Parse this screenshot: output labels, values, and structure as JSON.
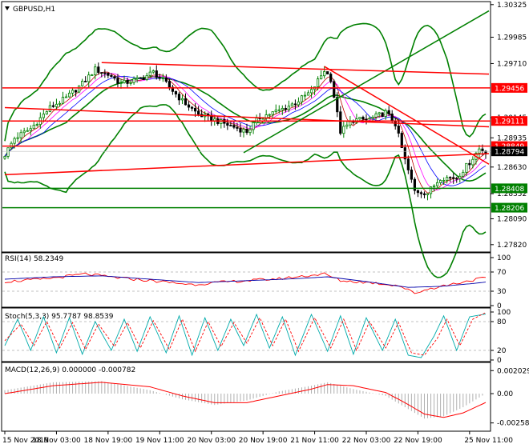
{
  "window": {
    "title": "GBPUSD,H1"
  },
  "colors": {
    "background": "#ffffff",
    "axis": "#000000",
    "candle_up": "#008000",
    "candle_down": "#000000",
    "bollinger": "#008000",
    "ma_fast": "#c00000",
    "ma_mid": "#ff00ff",
    "ma_slow": "#0000ff",
    "resistance": "#ff0000",
    "support": "#008000",
    "trend_channel": "#ff0000",
    "trend_up": "#008000",
    "rsi_line": "#ff0000",
    "rsi_signal": "#0000aa",
    "stoch_main": "#00aaaa",
    "stoch_signal": "#ff0000",
    "macd_hist": "#b0b0b0",
    "macd_signal": "#ff0000",
    "label_red_bg": "#ff0000",
    "label_green_bg": "#008000",
    "label_current_bg": "#000000"
  },
  "chart_data": [
    {
      "type": "candlestick",
      "title": "GBPUSD,H1",
      "y_axis_side": "right",
      "ylim": [
        1.2776,
        1.3034
      ],
      "x_tick_labels": [
        "15 Nov 2019",
        "18 Nov 03:00",
        "18 Nov 19:00",
        "19 Nov 11:00",
        "20 Nov 03:00",
        "20 Nov 19:00",
        "21 Nov 11:00",
        "22 Nov 03:00",
        "22 Nov 19:00",
        "25 Nov 11:00"
      ],
      "x_tick_bars": [
        0,
        16,
        32,
        48,
        64,
        80,
        96,
        112,
        128,
        144
      ],
      "y_tick_labels": [
        "1.30325",
        "1.29985",
        "1.29710",
        "1.29145",
        "1.28935",
        "1.28630",
        "1.28352",
        "1.28090",
        "1.27820"
      ],
      "price_levels": [
        {
          "label": "1.29456",
          "value": 1.29456,
          "kind": "resistance"
        },
        {
          "label": "1.29111",
          "value": 1.29111,
          "kind": "resistance"
        },
        {
          "label": "1.28849",
          "value": 1.28849,
          "kind": "resistance"
        },
        {
          "label": "1.28408",
          "value": 1.28408,
          "kind": "support"
        },
        {
          "label": "1.28206",
          "value": 1.28206,
          "kind": "support"
        }
      ],
      "current_price_label": "1.28794",
      "current_price": 1.28794,
      "trend_lines": [
        {
          "name": "upper channel",
          "from": [
            0,
            1.2925
          ],
          "to": [
            150,
            1.2905
          ],
          "color_key": "resistance"
        },
        {
          "name": "lower channel",
          "from": [
            0,
            1.2855
          ],
          "to": [
            150,
            1.2877
          ],
          "color_key": "resistance"
        },
        {
          "name": "descending",
          "from": [
            99,
            1.2968
          ],
          "to": [
            150,
            1.2866
          ],
          "color_key": "resistance"
        },
        {
          "name": "ascending",
          "from": [
            74,
            1.2878
          ],
          "to": [
            150,
            1.3026
          ],
          "color_key": "trend_up"
        },
        {
          "name": "long horizontal",
          "from": [
            30,
            1.2972
          ],
          "to": [
            150,
            1.296
          ],
          "color_key": "resistance"
        }
      ],
      "anchors": [
        [
          0,
          1.2876
        ],
        [
          3,
          1.2893
        ],
        [
          8,
          1.2903
        ],
        [
          14,
          1.2925
        ],
        [
          19,
          1.2935
        ],
        [
          24,
          1.295
        ],
        [
          28,
          1.2965
        ],
        [
          33,
          1.2958
        ],
        [
          36,
          1.295
        ],
        [
          42,
          1.2955
        ],
        [
          46,
          1.2962
        ],
        [
          50,
          1.295
        ],
        [
          55,
          1.2932
        ],
        [
          60,
          1.2918
        ],
        [
          65,
          1.2912
        ],
        [
          70,
          1.2906
        ],
        [
          75,
          1.29
        ],
        [
          79,
          1.2915
        ],
        [
          85,
          1.2922
        ],
        [
          90,
          1.293
        ],
        [
          95,
          1.2942
        ],
        [
          99,
          1.2964
        ],
        [
          101,
          1.2955
        ],
        [
          104,
          1.29
        ],
        [
          108,
          1.2912
        ],
        [
          113,
          1.2913
        ],
        [
          118,
          1.292
        ],
        [
          121,
          1.2908
        ],
        [
          124,
          1.287
        ],
        [
          127,
          1.2838
        ],
        [
          131,
          1.2836
        ],
        [
          135,
          1.2852
        ],
        [
          140,
          1.2852
        ],
        [
          144,
          1.2868
        ],
        [
          147,
          1.2882
        ],
        [
          149,
          1.2879
        ]
      ]
    },
    {
      "type": "line",
      "title": "RSI(14) 58.2349",
      "ylim": [
        0,
        100
      ],
      "y_tick_labels": [
        "100",
        "70",
        "30",
        "0"
      ],
      "series": [
        {
          "name": "RSI",
          "anchors": [
            [
              0,
              50
            ],
            [
              12,
              55
            ],
            [
              25,
              66
            ],
            [
              32,
              60
            ],
            [
              45,
              52
            ],
            [
              58,
              44
            ],
            [
              70,
              50
            ],
            [
              85,
              56
            ],
            [
              99,
              66
            ],
            [
              104,
              52
            ],
            [
              113,
              48
            ],
            [
              122,
              42
            ],
            [
              127,
              26
            ],
            [
              132,
              36
            ],
            [
              138,
              44
            ],
            [
              144,
              52
            ],
            [
              149,
              58.2
            ]
          ]
        },
        {
          "name": "signal",
          "anchors": [
            [
              0,
              55
            ],
            [
              15,
              60
            ],
            [
              30,
              62
            ],
            [
              45,
              55
            ],
            [
              60,
              48
            ],
            [
              75,
              52
            ],
            [
              90,
              56
            ],
            [
              100,
              60
            ],
            [
              112,
              50
            ],
            [
              125,
              38
            ],
            [
              135,
              40
            ],
            [
              145,
              46
            ],
            [
              149,
              49
            ]
          ]
        }
      ]
    },
    {
      "type": "line",
      "title": "Stoch(5,3,3) 95.7787 98.8539",
      "ylim": [
        0,
        100
      ],
      "y_tick_labels": [
        "100",
        "80",
        "20",
        "0"
      ],
      "series": [
        {
          "name": "main",
          "anchors": [
            [
              0,
              30
            ],
            [
              4,
              85
            ],
            [
              8,
              20
            ],
            [
              12,
              90
            ],
            [
              16,
              15
            ],
            [
              20,
              88
            ],
            [
              24,
              12
            ],
            [
              28,
              80
            ],
            [
              33,
              20
            ],
            [
              37,
              85
            ],
            [
              41,
              18
            ],
            [
              45,
              90
            ],
            [
              50,
              15
            ],
            [
              54,
              92
            ],
            [
              58,
              10
            ],
            [
              62,
              88
            ],
            [
              66,
              20
            ],
            [
              70,
              85
            ],
            [
              74,
              30
            ],
            [
              78,
              95
            ],
            [
              82,
              25
            ],
            [
              86,
              90
            ],
            [
              90,
              10
            ],
            [
              95,
              95
            ],
            [
              100,
              18
            ],
            [
              104,
              92
            ],
            [
              108,
              12
            ],
            [
              112,
              88
            ],
            [
              117,
              20
            ],
            [
              121,
              85
            ],
            [
              125,
              10
            ],
            [
              129,
              5
            ],
            [
              133,
              50
            ],
            [
              136,
              92
            ],
            [
              140,
              20
            ],
            [
              144,
              90
            ],
            [
              149,
              95.8
            ]
          ]
        },
        {
          "name": "signal",
          "anchors": [
            [
              0,
              40
            ],
            [
              5,
              75
            ],
            [
              9,
              30
            ],
            [
              13,
              80
            ],
            [
              17,
              25
            ],
            [
              21,
              78
            ],
            [
              25,
              22
            ],
            [
              29,
              75
            ],
            [
              34,
              28
            ],
            [
              38,
              78
            ],
            [
              42,
              25
            ],
            [
              46,
              82
            ],
            [
              51,
              22
            ],
            [
              55,
              85
            ],
            [
              59,
              18
            ],
            [
              63,
              80
            ],
            [
              67,
              28
            ],
            [
              71,
              78
            ],
            [
              75,
              35
            ],
            [
              79,
              88
            ],
            [
              83,
              30
            ],
            [
              87,
              85
            ],
            [
              91,
              18
            ],
            [
              96,
              88
            ],
            [
              101,
              25
            ],
            [
              105,
              85
            ],
            [
              109,
              20
            ],
            [
              113,
              80
            ],
            [
              118,
              25
            ],
            [
              122,
              78
            ],
            [
              126,
              15
            ],
            [
              130,
              10
            ],
            [
              134,
              45
            ],
            [
              137,
              85
            ],
            [
              141,
              30
            ],
            [
              145,
              85
            ],
            [
              149,
              98.9
            ]
          ]
        }
      ]
    },
    {
      "type": "bar",
      "title": "MACD(12,26,9) 0.000000 -0.000782",
      "ylim": [
        -0.0031,
        0.0024
      ],
      "y_tick_labels": [
        "0.002029",
        "0.00",
        "-0.002583"
      ],
      "series": [
        {
          "name": "MACD",
          "anchors": [
            [
              0,
              0.0003
            ],
            [
              15,
              0.001
            ],
            [
              30,
              0.0011
            ],
            [
              45,
              0.0003
            ],
            [
              55,
              -0.0005
            ],
            [
              65,
              -0.001
            ],
            [
              75,
              -0.0006
            ],
            [
              85,
              0.0002
            ],
            [
              95,
              0.0007
            ],
            [
              100,
              0.001
            ],
            [
              108,
              0.0004
            ],
            [
              118,
              -0.0002
            ],
            [
              124,
              -0.0012
            ],
            [
              130,
              -0.0022
            ],
            [
              136,
              -0.002
            ],
            [
              142,
              -0.0012
            ],
            [
              149,
              0.0
            ]
          ]
        },
        {
          "name": "signal",
          "anchors": [
            [
              0,
              0.0
            ],
            [
              15,
              0.0007
            ],
            [
              30,
              0.001
            ],
            [
              45,
              0.0006
            ],
            [
              55,
              -0.0002
            ],
            [
              65,
              -0.0008
            ],
            [
              75,
              -0.0008
            ],
            [
              85,
              -0.0002
            ],
            [
              95,
              0.0004
            ],
            [
              100,
              0.0008
            ],
            [
              108,
              0.0007
            ],
            [
              118,
              0.0001
            ],
            [
              124,
              -0.0008
            ],
            [
              130,
              -0.0018
            ],
            [
              136,
              -0.0021
            ],
            [
              142,
              -0.0017
            ],
            [
              149,
              -0.000782
            ]
          ]
        }
      ]
    }
  ]
}
